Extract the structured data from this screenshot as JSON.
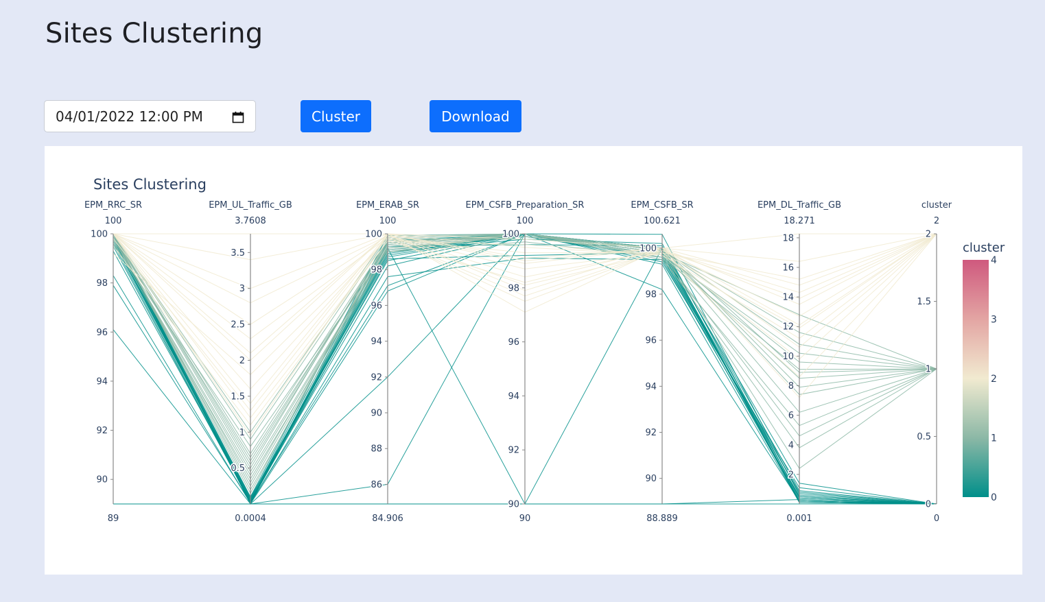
{
  "page": {
    "title": "Sites Clustering"
  },
  "controls": {
    "date_value": "04/01/2022 12:00  PM",
    "cluster_label": "Cluster",
    "download_label": "Download",
    "accent": "#0d6efd"
  },
  "chart_data": {
    "type": "parallel-coordinates",
    "title": "Sites Clustering",
    "colorbar": {
      "title": "cluster",
      "min": 0,
      "max": 4,
      "ticks": [
        "0",
        "1",
        "2",
        "3",
        "4"
      ],
      "colorscale": [
        "#008f8a",
        "#8cb8a6",
        "#f1ead0",
        "#e3a5a3",
        "#cf597e"
      ]
    },
    "dimensions": [
      {
        "label": "EPM_RRC_SR",
        "min": 89,
        "max": 100,
        "min_label": "89",
        "max_label": "100",
        "ticks": [
          90,
          92,
          94,
          96,
          98,
          100
        ]
      },
      {
        "label": "EPM_UL_Traffic_GB",
        "min": 0.0004,
        "max": 3.7608,
        "min_label": "0.0004",
        "max_label": "3.7608",
        "ticks": [
          0.5,
          1,
          1.5,
          2,
          2.5,
          3,
          3.5
        ]
      },
      {
        "label": "EPM_ERAB_SR",
        "min": 84.906,
        "max": 100,
        "min_label": "84.906",
        "max_label": "100",
        "ticks": [
          86,
          88,
          90,
          92,
          94,
          96,
          98,
          100
        ]
      },
      {
        "label": "EPM_CSFB_Preparation_SR",
        "min": 90,
        "max": 100,
        "min_label": "90",
        "max_label": "100",
        "ticks": [
          90,
          92,
          94,
          96,
          98,
          100
        ]
      },
      {
        "label": "EPM_CSFB_SR",
        "min": 88.889,
        "max": 100.621,
        "min_label": "88.889",
        "max_label": "100.621",
        "ticks": [
          90,
          92,
          94,
          96,
          98,
          100
        ]
      },
      {
        "label": "EPM_DL_Traffic_GB",
        "min": 0.001,
        "max": 18.271,
        "min_label": "0.001",
        "max_label": "18.271",
        "ticks": [
          2,
          4,
          6,
          8,
          10,
          12,
          14,
          16,
          18
        ]
      },
      {
        "label": "cluster",
        "min": 0,
        "max": 2,
        "min_label": "0",
        "max_label": "2",
        "ticks": [
          0,
          0.5,
          1,
          1.5,
          2
        ]
      }
    ],
    "records": [
      [
        89,
        0.0004,
        84.906,
        90,
        88.889,
        0.001,
        0
      ],
      [
        89,
        0.0004,
        84.906,
        90,
        88.889,
        0.3,
        0
      ],
      [
        96.1,
        0.001,
        96.8,
        100,
        98.2,
        0.2,
        0
      ],
      [
        97.9,
        0.02,
        97.1,
        100,
        99.3,
        0.1,
        0
      ],
      [
        98.3,
        0.01,
        97.6,
        99.1,
        99.5,
        0.4,
        0
      ],
      [
        99.3,
        0.05,
        98.2,
        100,
        99.6,
        0.2,
        0
      ],
      [
        99.7,
        0.08,
        98.7,
        100,
        99.7,
        0.5,
        0
      ],
      [
        99.8,
        0.03,
        98.9,
        100,
        99.8,
        0.3,
        0
      ],
      [
        100,
        0.0004,
        92,
        100,
        100,
        0.1,
        0
      ],
      [
        100,
        0.0004,
        86,
        100,
        100,
        0.2,
        0
      ],
      [
        100,
        0.01,
        99.2,
        90,
        100,
        0.1,
        0
      ],
      [
        99.9,
        0.02,
        99.5,
        100,
        100.6,
        0.6,
        0
      ],
      [
        99.6,
        0.03,
        99.0,
        99.8,
        100.2,
        0.4,
        0
      ],
      [
        99.8,
        0.06,
        98.5,
        100,
        99.9,
        0.7,
        0
      ],
      [
        100,
        0.04,
        99.3,
        99.6,
        100.1,
        0.9,
        0
      ],
      [
        99.9,
        0.09,
        98.8,
        100,
        99.4,
        1.1,
        0
      ],
      [
        100,
        0.07,
        99.6,
        100,
        99.9,
        0.2,
        0
      ],
      [
        99.5,
        0.02,
        98.6,
        99.2,
        99.8,
        0.5,
        0
      ],
      [
        100,
        0.1,
        99.9,
        100,
        100,
        1.4,
        0
      ],
      [
        99.7,
        0.05,
        99.1,
        99.9,
        99.6,
        0.8,
        0
      ],
      [
        100,
        0.2,
        99.0,
        100,
        99.8,
        8.5,
        1
      ],
      [
        99.8,
        0.4,
        99.2,
        99.9,
        99.7,
        10.2,
        1
      ],
      [
        100,
        0.6,
        99.5,
        100,
        99.9,
        11.6,
        1
      ],
      [
        99.9,
        0.3,
        99.4,
        100,
        99.6,
        9.1,
        1
      ],
      [
        100,
        0.5,
        99.7,
        99.8,
        100,
        7.4,
        1
      ],
      [
        99.6,
        0.8,
        99.1,
        100,
        99.9,
        6.2,
        1
      ],
      [
        100,
        0.9,
        99.8,
        100,
        99.8,
        12.8,
        1
      ],
      [
        99.9,
        0.25,
        99.3,
        100,
        99.5,
        5.3,
        1
      ],
      [
        100,
        0.7,
        99.6,
        99.9,
        100,
        8.9,
        1
      ],
      [
        99.8,
        0.45,
        99.2,
        100,
        99.7,
        4.6,
        1
      ],
      [
        100,
        1.0,
        99.9,
        100,
        99.9,
        10.8,
        1
      ],
      [
        99.7,
        0.35,
        99.0,
        99.7,
        99.6,
        3.8,
        1
      ],
      [
        100,
        0.55,
        99.5,
        100,
        100,
        7.9,
        1
      ],
      [
        99.9,
        0.65,
        99.4,
        100,
        99.8,
        9.6,
        1
      ],
      [
        100,
        0.15,
        99.7,
        100,
        99.9,
        2.4,
        1
      ],
      [
        100,
        1.2,
        99.6,
        98.2,
        100,
        13.5,
        2
      ],
      [
        100,
        1.6,
        99.8,
        97.5,
        99.9,
        14.3,
        2
      ],
      [
        100,
        2.1,
        100,
        99.0,
        100,
        12.1,
        2
      ],
      [
        100,
        2.5,
        99.9,
        98.7,
        99.8,
        15.2,
        2
      ],
      [
        100,
        3.0,
        100,
        97.9,
        100,
        16.4,
        2
      ],
      [
        100,
        3.4,
        100,
        99.5,
        99.7,
        11.2,
        2
      ],
      [
        100,
        3.7608,
        100,
        97.1,
        100,
        18.271,
        2
      ],
      [
        100,
        2.8,
        99.9,
        98.4,
        99.9,
        13.9,
        2
      ],
      [
        99.2,
        1.8,
        99.7,
        99.3,
        99.8,
        9.8,
        2
      ],
      [
        100,
        1.4,
        100,
        98.9,
        100,
        10.6,
        2
      ],
      [
        100,
        2.3,
        99.8,
        97.7,
        99.9,
        12.7,
        2
      ],
      [
        99.5,
        1.1,
        99.6,
        99.6,
        99.7,
        8.6,
        2
      ],
      [
        100,
        0.95,
        100,
        99.8,
        100,
        7.2,
        2
      ],
      [
        99.8,
        1.3,
        99.9,
        98.1,
        99.8,
        11.9,
        2
      ],
      [
        100,
        2.0,
        100,
        99.1,
        100,
        14.8,
        2
      ]
    ]
  }
}
